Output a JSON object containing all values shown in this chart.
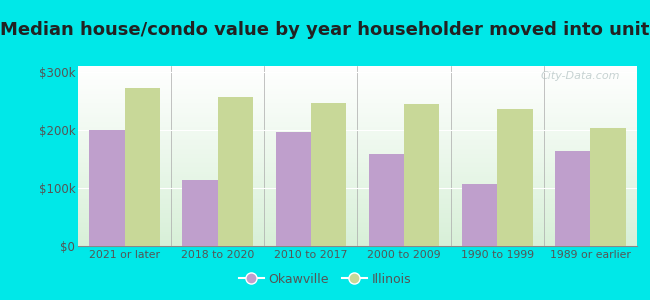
{
  "title": "Median house/condo value by year householder moved into unit",
  "categories": [
    "2021 or later",
    "2018 to 2020",
    "2010 to 2017",
    "2000 to 2009",
    "1990 to 1999",
    "1989 or earlier"
  ],
  "okawville_values": [
    200000,
    113000,
    196000,
    158000,
    106000,
    163000
  ],
  "illinois_values": [
    272000,
    256000,
    247000,
    244000,
    236000,
    204000
  ],
  "okawville_color": "#bf9fcc",
  "illinois_color": "#c8d898",
  "background_color": "#00e8e8",
  "plot_bg_top": "#ffffff",
  "plot_bg_bottom": "#d8f0d8",
  "title_fontsize": 13,
  "ylabel_ticks": [
    0,
    100000,
    200000,
    300000
  ],
  "ylabel_labels": [
    "$0",
    "$100k",
    "$200k",
    "$300k"
  ],
  "legend_labels": [
    "Okawville",
    "Illinois"
  ],
  "bar_width": 0.38,
  "watermark": "City-Data.com",
  "ylim_max": 310000
}
